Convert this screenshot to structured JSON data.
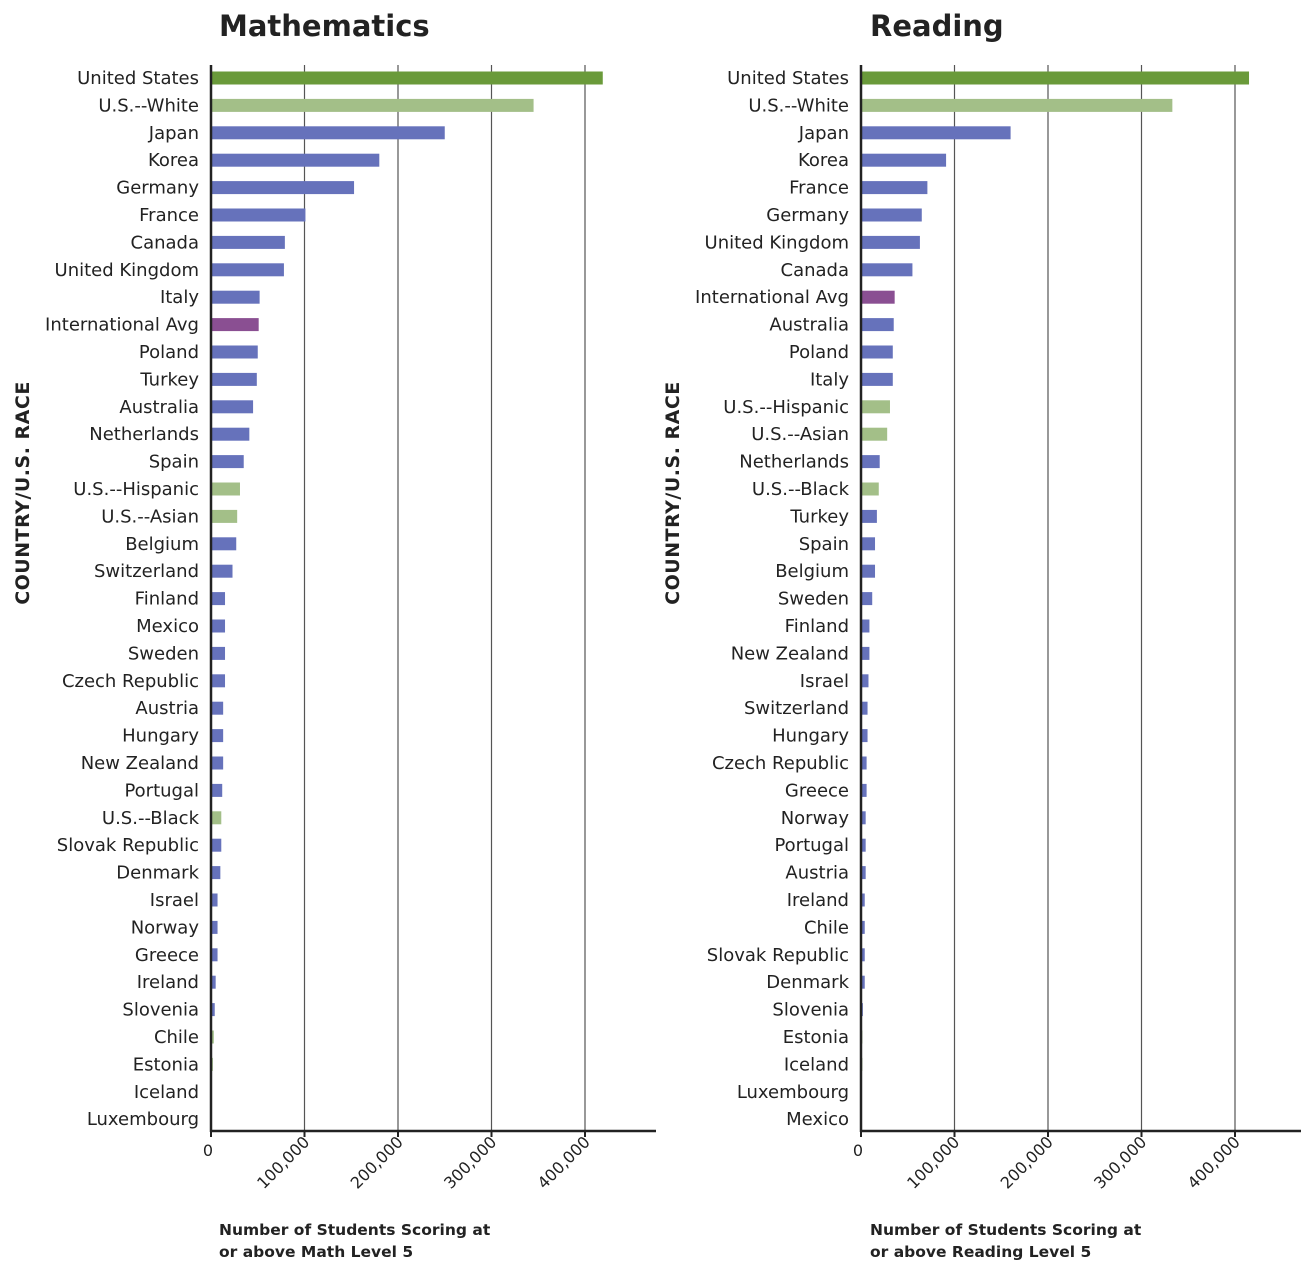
{
  "colors": {
    "united_states": "#6a9a3a",
    "us_white": "#a3bf88",
    "us_subgroup": "#a3bf88",
    "country": "#6672bb",
    "international_avg": "#8a4f92"
  },
  "chart_data": [
    {
      "type": "bar",
      "orientation": "horizontal",
      "title": "Mathematics",
      "xlabel": [
        "Number of Students Scoring at",
        "or above Math Level 5"
      ],
      "ylabel": "COUNTRY/U.S. RACE",
      "xlim": [
        0,
        480000
      ],
      "xticks": [
        0,
        100000,
        200000,
        300000,
        400000
      ],
      "xtick_labels": [
        "0",
        "100,000",
        "200,000",
        "300,000",
        "400,000"
      ],
      "grid": "vertical",
      "categories": [
        "United States",
        "U.S.--White",
        "Japan",
        "Korea",
        "Germany",
        "France",
        "Canada",
        "United Kingdom",
        "Italy",
        "International Avg",
        "Poland",
        "Turkey",
        "Australia",
        "Netherlands",
        "Spain",
        "U.S.--Hispanic",
        "U.S.--Asian",
        "Belgium",
        "Switzerland",
        "Finland",
        "Mexico",
        "Sweden",
        "Czech Republic",
        "Austria",
        "Hungary",
        "New Zealand",
        "Portugal",
        "U.S.--Black",
        "Slovak Republic",
        "Denmark",
        "Israel",
        "Norway",
        "Greece",
        "Ireland",
        "Slovenia",
        "Chile",
        "Estonia",
        "Iceland",
        "Luxembourg"
      ],
      "values": [
        419000,
        345000,
        250000,
        180000,
        153000,
        101000,
        79000,
        78000,
        52000,
        51000,
        50000,
        49000,
        45000,
        41000,
        35000,
        31000,
        28000,
        27000,
        23000,
        15000,
        15000,
        15000,
        15000,
        13000,
        13000,
        13000,
        12000,
        11000,
        11000,
        10000,
        7000,
        7000,
        7000,
        5000,
        4000,
        3000,
        2000,
        1000,
        500
      ],
      "groups": [
        "united_states",
        "us_white",
        "country",
        "country",
        "country",
        "country",
        "country",
        "country",
        "country",
        "international_avg",
        "country",
        "country",
        "country",
        "country",
        "country",
        "us_subgroup",
        "us_subgroup",
        "country",
        "country",
        "country",
        "country",
        "country",
        "country",
        "country",
        "country",
        "country",
        "country",
        "us_subgroup",
        "country",
        "country",
        "country",
        "country",
        "country",
        "country",
        "country",
        "us_subgroup",
        "us_subgroup",
        "country",
        "country"
      ]
    },
    {
      "type": "bar",
      "orientation": "horizontal",
      "title": "Reading",
      "xlabel": [
        "Number of Students Scoring at",
        "or above Reading Level 5"
      ],
      "ylabel": "COUNTRY/U.S. RACE",
      "xlim": [
        0,
        470000
      ],
      "xticks": [
        0,
        100000,
        200000,
        300000,
        400000
      ],
      "xtick_labels": [
        "0",
        "100,000",
        "200,000",
        "300,000",
        "400,000"
      ],
      "grid": "vertical",
      "categories": [
        "United States",
        "U.S.--White",
        "Japan",
        "Korea",
        "France",
        "Germany",
        "United Kingdom",
        "Canada",
        "International Avg",
        "Australia",
        "Poland",
        "Italy",
        "U.S.--Hispanic",
        "U.S.--Asian",
        "Netherlands",
        "U.S.--Black",
        "Turkey",
        "Spain",
        "Belgium",
        "Sweden",
        "Finland",
        "New Zealand",
        "Israel",
        "Switzerland",
        "Hungary",
        "Czech Republic",
        "Greece",
        "Norway",
        "Portugal",
        "Austria",
        "Ireland",
        "Chile",
        "Slovak Republic",
        "Denmark",
        "Slovenia",
        "Estonia",
        "Iceland",
        "Luxembourg",
        "Mexico"
      ],
      "values": [
        415000,
        333000,
        160000,
        91000,
        71000,
        65000,
        63000,
        55000,
        36000,
        35000,
        34000,
        34000,
        31000,
        28000,
        20000,
        19000,
        17000,
        15000,
        15000,
        12000,
        9000,
        9000,
        8000,
        7000,
        7000,
        6000,
        6000,
        5000,
        5000,
        5000,
        4000,
        4000,
        4000,
        4000,
        2000,
        1500,
        1500,
        1000,
        500
      ],
      "groups": [
        "united_states",
        "us_white",
        "country",
        "country",
        "country",
        "country",
        "country",
        "country",
        "international_avg",
        "country",
        "country",
        "country",
        "us_subgroup",
        "us_subgroup",
        "country",
        "us_subgroup",
        "country",
        "country",
        "country",
        "country",
        "country",
        "country",
        "country",
        "country",
        "country",
        "country",
        "country",
        "country",
        "country",
        "country",
        "country",
        "country",
        "country",
        "country",
        "country",
        "us_subgroup",
        "us_subgroup",
        "country",
        "country"
      ]
    }
  ]
}
